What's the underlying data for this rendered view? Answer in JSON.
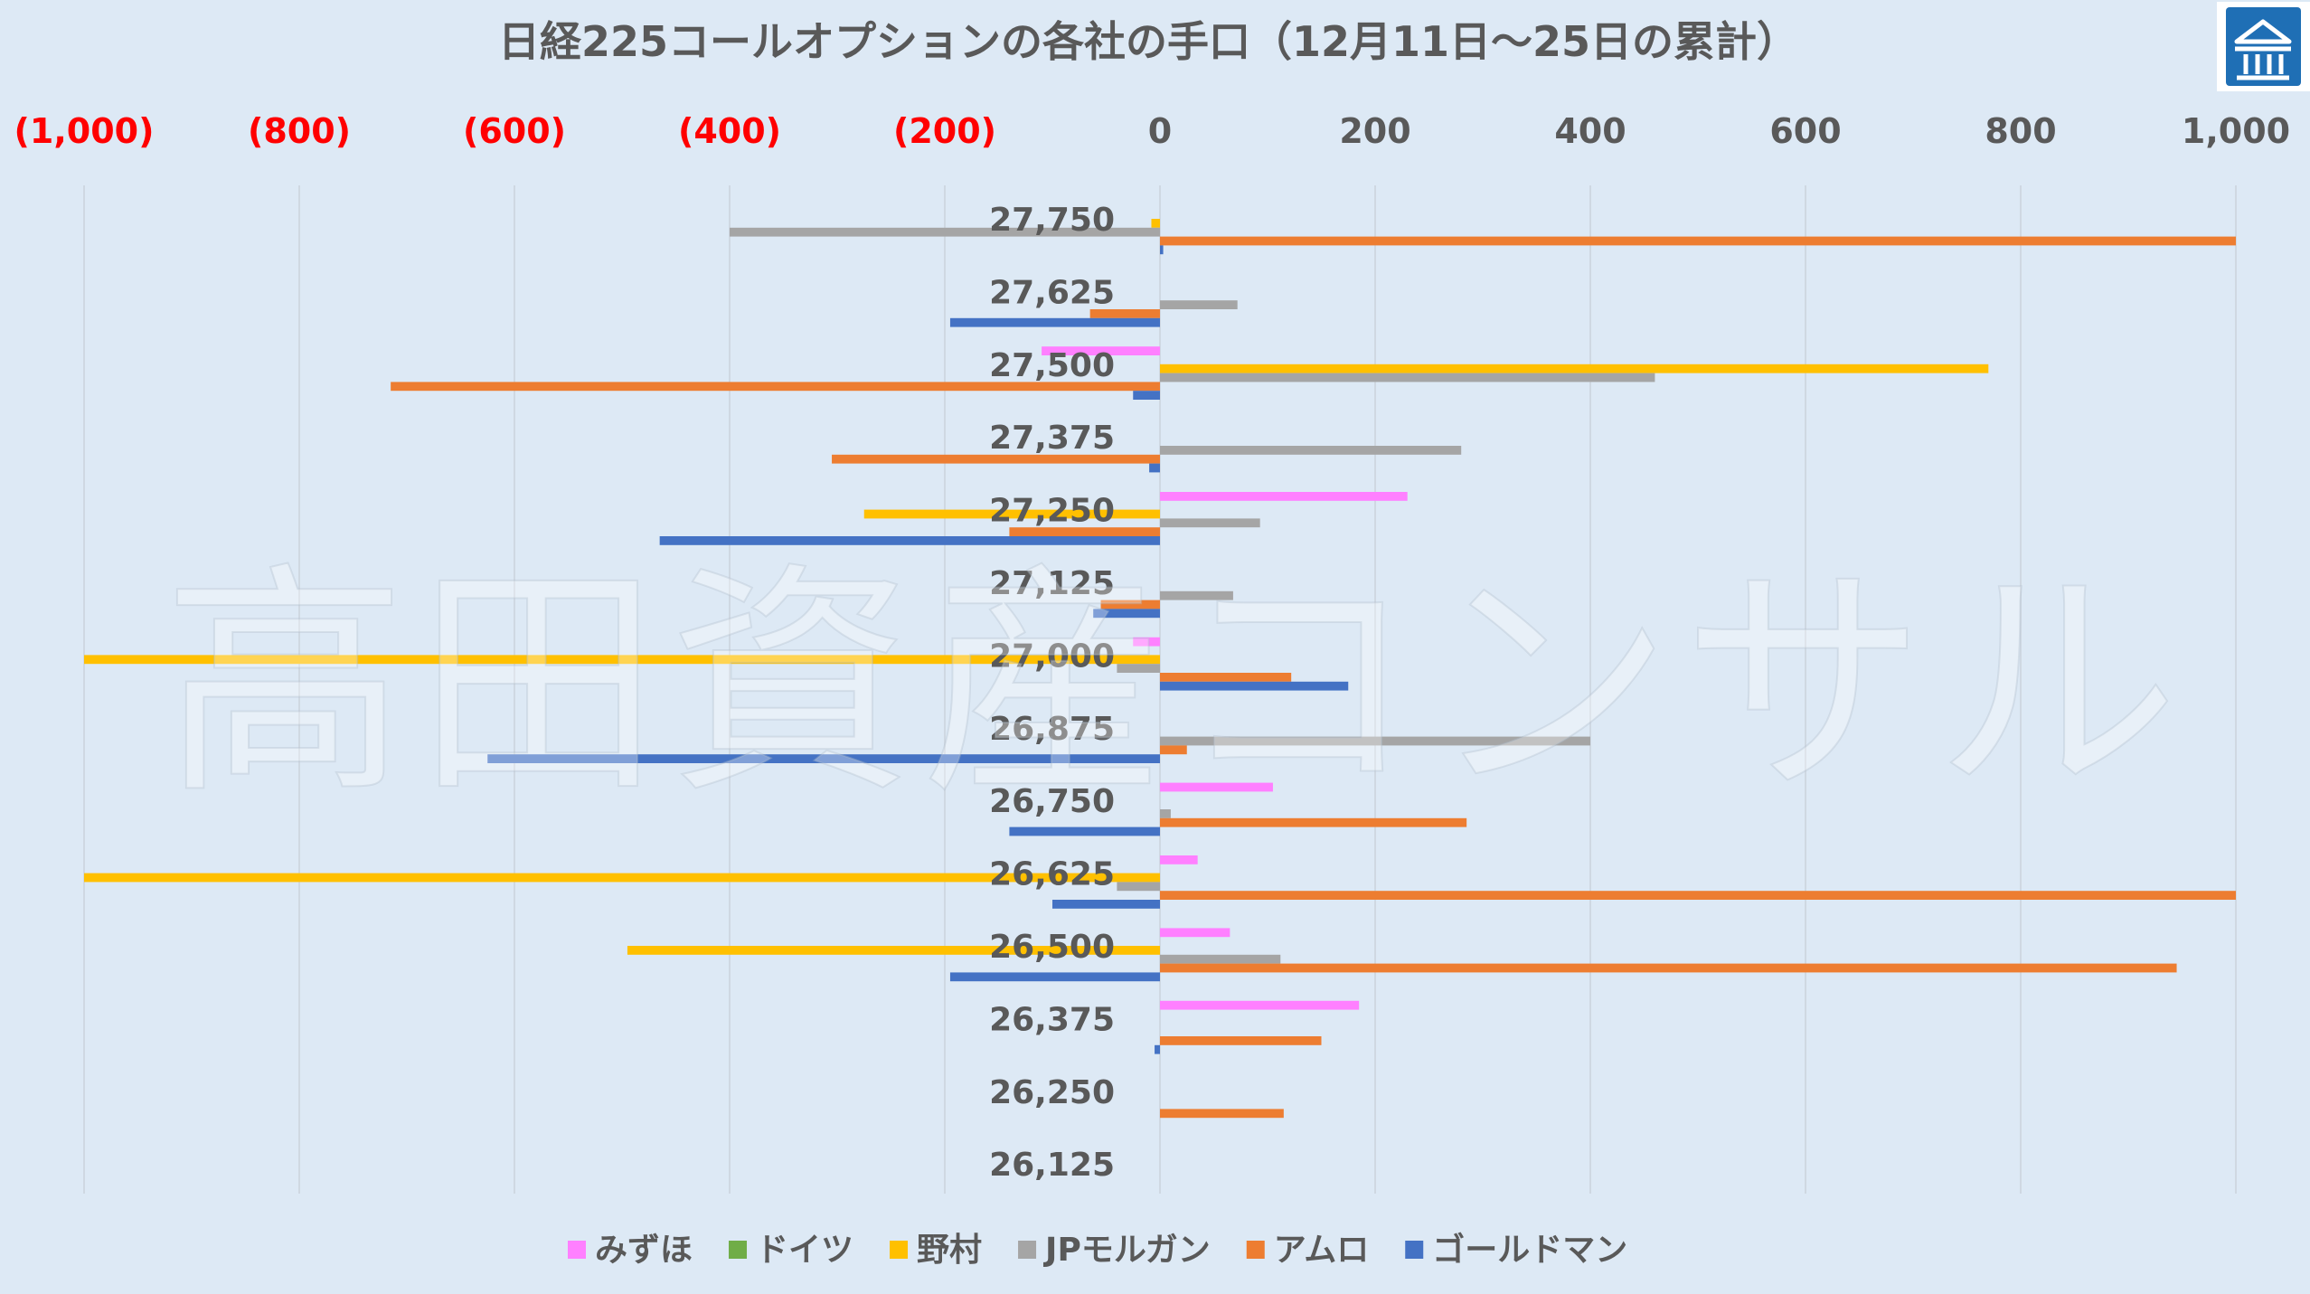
{
  "chart_data": {
    "type": "bar",
    "orientation": "horizontal",
    "title": "日経225コールオプションの各社の手口（12月11日～25日の累計）",
    "xlim": [
      -1000,
      1000
    ],
    "x_ticks": [
      {
        "value": -1000,
        "label": "(1,000)"
      },
      {
        "value": -800,
        "label": "(800)"
      },
      {
        "value": -600,
        "label": "(600)"
      },
      {
        "value": -400,
        "label": "(400)"
      },
      {
        "value": -200,
        "label": "(200)"
      },
      {
        "value": 0,
        "label": "0"
      },
      {
        "value": 200,
        "label": "200"
      },
      {
        "value": 400,
        "label": "400"
      },
      {
        "value": 600,
        "label": "600"
      },
      {
        "value": 800,
        "label": "800"
      },
      {
        "value": 1000,
        "label": "1,000"
      }
    ],
    "negative_tick_color": "#ff0000",
    "positive_tick_color": "#595959",
    "grid": true,
    "legend_position": "bottom",
    "categories": [
      "27,750",
      "27,625",
      "27,500",
      "27,375",
      "27,250",
      "27,125",
      "27,000",
      "26,875",
      "26,750",
      "26,625",
      "26,500",
      "26,375",
      "26,250",
      "26,125"
    ],
    "series": [
      {
        "name": "みずほ",
        "color": "#ff80ff",
        "values": [
          0,
          0,
          -110,
          0,
          230,
          0,
          -25,
          0,
          105,
          35,
          65,
          185,
          0,
          0
        ]
      },
      {
        "name": "ドイツ",
        "color": "#70ad47",
        "values": [
          0,
          0,
          0,
          0,
          0,
          0,
          0,
          0,
          0,
          0,
          0,
          0,
          0,
          0
        ]
      },
      {
        "name": "野村",
        "color": "#ffc000",
        "values": [
          -8,
          0,
          770,
          0,
          -275,
          0,
          -1000,
          0,
          0,
          -1000,
          -495,
          0,
          0,
          0
        ]
      },
      {
        "name": "JPモルガン",
        "color": "#a5a5a5",
        "values": [
          -400,
          72,
          460,
          280,
          93,
          68,
          -40,
          400,
          10,
          -40,
          112,
          0,
          0,
          0
        ]
      },
      {
        "name": "アムロ",
        "color": "#ed7d31",
        "values": [
          1000,
          -65,
          -715,
          -305,
          -140,
          -55,
          122,
          25,
          285,
          1000,
          945,
          150,
          115,
          0
        ]
      },
      {
        "name": "ゴールドマン",
        "color": "#4472c4",
        "values": [
          3,
          -195,
          -25,
          -10,
          -465,
          -62,
          175,
          -625,
          -140,
          -100,
          -195,
          -5,
          0,
          0
        ]
      }
    ]
  },
  "watermark": "高田資産コンサル",
  "logo": {
    "icon": "bank-building-icon",
    "color": "#1f6fb5"
  }
}
